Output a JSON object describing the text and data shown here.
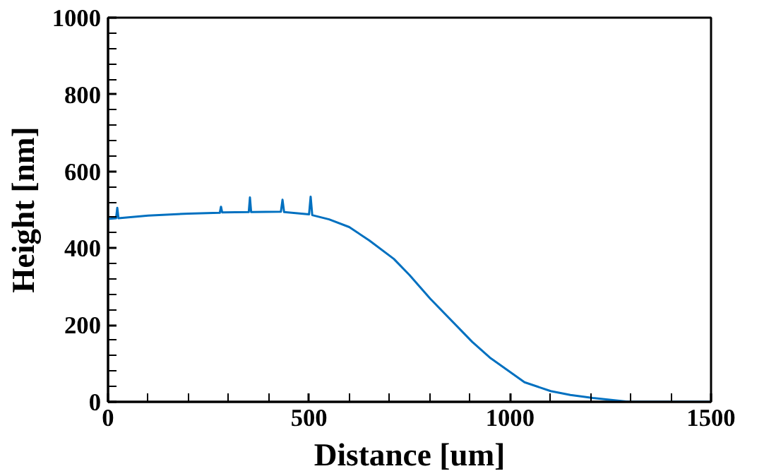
{
  "chart_data": {
    "type": "line",
    "xlabel": "Distance [um]",
    "ylabel": "Height [nm]",
    "xlim": [
      0,
      1500
    ],
    "ylim": [
      0,
      1000
    ],
    "xticks": [
      0,
      500,
      1000,
      1500
    ],
    "yticks": [
      0,
      200,
      400,
      600,
      800,
      1000
    ],
    "grid": false,
    "marker": "none",
    "line_style": "solid",
    "series": [
      {
        "color": "#0070c0",
        "x": [
          0,
          20,
          23,
          26,
          100,
          200,
          278,
          281,
          284,
          350,
          353,
          356,
          430,
          434,
          438,
          500,
          504,
          508,
          550,
          600,
          650,
          711,
          750,
          802,
          906,
          950,
          1036,
          1101,
          1150,
          1206,
          1297,
          1400,
          1500
        ],
        "values": [
          476,
          478,
          505,
          478,
          485,
          490,
          492,
          508,
          493,
          494,
          532,
          494,
          495,
          526,
          494,
          488,
          534,
          486,
          475,
          455,
          420,
          372,
          330,
          268,
          156,
          115,
          51,
          28,
          18,
          10,
          0,
          0,
          0
        ]
      }
    ]
  }
}
